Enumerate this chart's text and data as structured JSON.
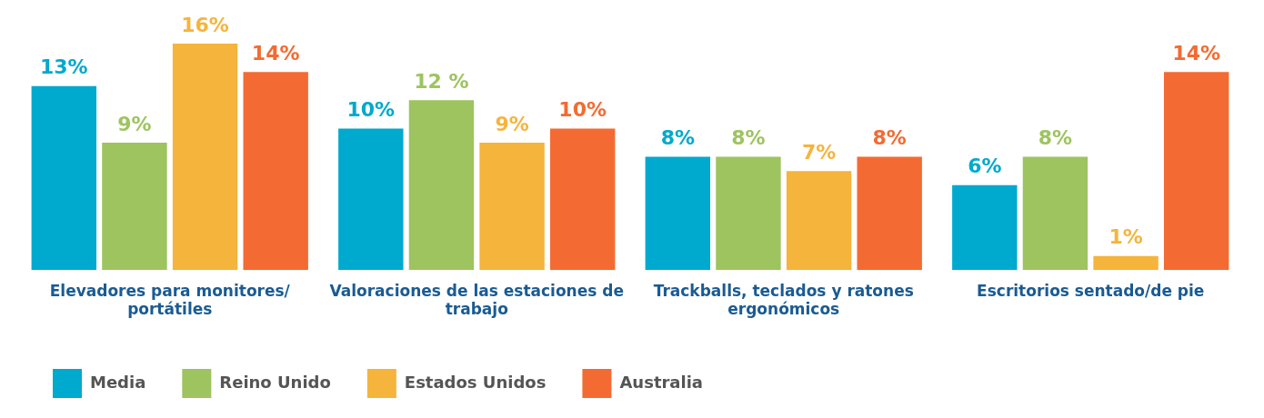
{
  "chart_data": {
    "type": "bar",
    "categories": [
      "Elevadores para monitores/ portátiles",
      "Valoraciones de las estaciones de trabajo",
      "Trackballs, teclados y ratones ergonómicos",
      "Escritorios sentado/de pie"
    ],
    "series": [
      {
        "name": "Media",
        "color": "#00a9ce",
        "values": [
          13,
          10,
          8,
          6
        ],
        "value_labels": [
          "13%",
          "10%",
          "8%",
          "6%"
        ]
      },
      {
        "name": "Reino Unido",
        "color": "#9dc45f",
        "values": [
          9,
          12,
          8,
          8
        ],
        "value_labels": [
          "9%",
          "12 %",
          "8%",
          "8%"
        ]
      },
      {
        "name": "Estados Unidos",
        "color": "#f5b43c",
        "values": [
          16,
          9,
          7,
          1
        ],
        "value_labels": [
          "16%",
          "9%",
          "7%",
          "1%"
        ]
      },
      {
        "name": "Australia",
        "color": "#f36b32",
        "values": [
          14,
          10,
          8,
          14
        ],
        "value_labels": [
          "14%",
          "10%",
          "8%",
          "14%"
        ]
      }
    ],
    "grid": false,
    "legend": "bottom left",
    "tick_labels": "x"
  }
}
